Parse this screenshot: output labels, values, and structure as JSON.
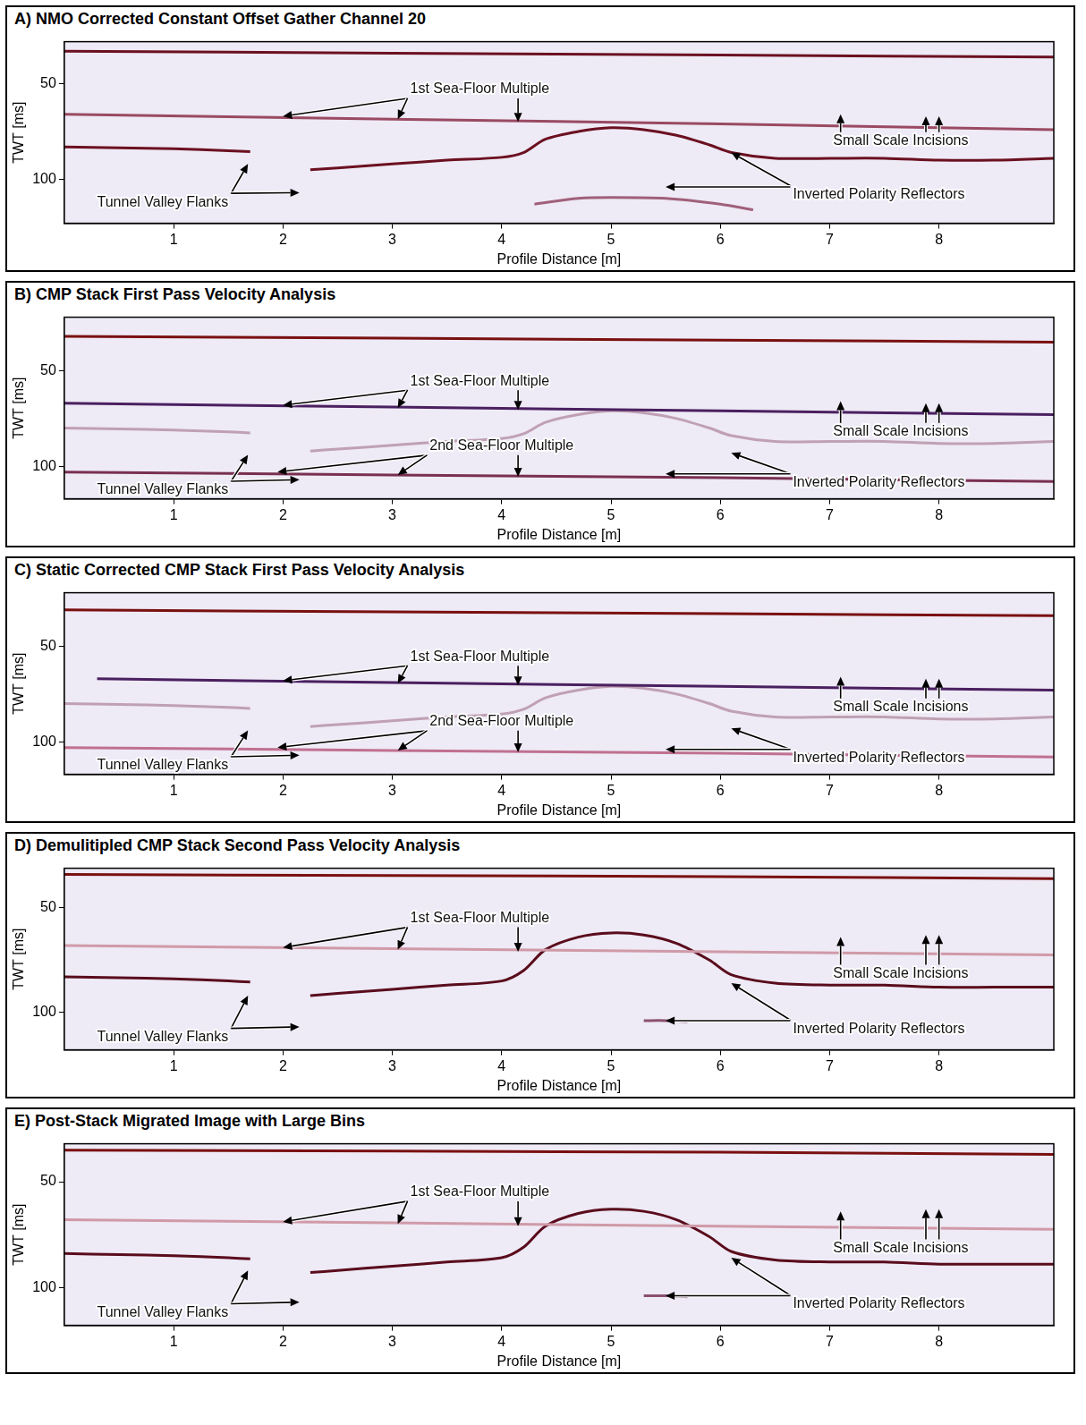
{
  "chart_data": [
    {
      "type": "line",
      "title": "A) NMO Corrected Constant Offset Gather Channel 20",
      "x_label": "Profile Distance [m]",
      "y_label": "TWT [ms]",
      "xlim": [
        0,
        9.05
      ],
      "ylim": [
        123,
        28
      ],
      "xticks": [
        1,
        2,
        3,
        4,
        5,
        6,
        7,
        8
      ],
      "yticks": [
        50,
        100
      ],
      "grid": false,
      "series": [
        {
          "color": "#6b1020",
          "x": [
            0,
            3,
            6,
            9.05
          ],
          "values": [
            33,
            34,
            35,
            36
          ]
        },
        {
          "color": "#9a4a62",
          "x": [
            0,
            3,
            6,
            9.05
          ],
          "values": [
            66,
            68.5,
            71,
            74
          ]
        },
        {
          "color": "#6b1020",
          "x": [
            0,
            0.5,
            1,
            1.5,
            1.7,
            1.75,
            2.25,
            2.5,
            3,
            3.5,
            4,
            4.2,
            4.4,
            4.7,
            5,
            5.3,
            5.6,
            5.9,
            6.1,
            6.5,
            7,
            7.5,
            8,
            8.5,
            9.05
          ],
          "values": [
            83,
            83.5,
            84,
            85,
            85.5,
            null,
            95,
            94,
            92,
            90,
            88.5,
            86,
            79,
            75,
            73,
            74,
            77,
            82,
            86,
            89,
            89,
            89,
            90,
            90,
            89
          ]
        },
        {
          "color": "#a0607a",
          "x": [
            4.3,
            4.7,
            5,
            5.5,
            6,
            6.3
          ],
          "values": [
            113,
            110,
            109.5,
            110,
            113,
            116
          ]
        }
      ],
      "annotations": [
        {
          "text": "1st Sea-Floor Multiple",
          "x": 3.8,
          "y": 53,
          "arrows": [
            [
              2.0,
              67
            ],
            [
              3.05,
              68.5
            ],
            [
              4.15,
              70
            ]
          ]
        },
        {
          "text": "Small Scale Incisions",
          "x": 7.65,
          "y": 80,
          "arrows": [
            [
              7.1,
              66
            ],
            [
              7.88,
              67
            ],
            [
              8.0,
              67
            ]
          ]
        },
        {
          "text": "Tunnel Valley Flanks",
          "x": 0.9,
          "y": 112,
          "arrows": [
            [
              1.68,
              92
            ],
            [
              2.15,
              107
            ]
          ]
        },
        {
          "text": "Inverted Polarity Reflectors",
          "x": 7.45,
          "y": 108,
          "arrows": [
            [
              6.1,
              86
            ],
            [
              5.5,
              104
            ]
          ]
        }
      ]
    },
    {
      "type": "line",
      "title": "B) CMP Stack First Pass Velocity Analysis",
      "x_label": "Profile Distance [m]",
      "y_label": "TWT [ms]",
      "xlim": [
        0,
        9.05
      ],
      "ylim": [
        117,
        22
      ],
      "xticks": [
        1,
        2,
        3,
        4,
        5,
        6,
        7,
        8
      ],
      "yticks": [
        50,
        100
      ],
      "grid": false,
      "series": [
        {
          "color": "#7a1010",
          "x": [
            0,
            3,
            6,
            9.05
          ],
          "values": [
            32,
            33,
            34,
            35
          ]
        },
        {
          "color": "#4a2060",
          "x": [
            0,
            3,
            6,
            9.05
          ],
          "values": [
            67,
            69,
            71,
            73
          ]
        },
        {
          "color": "#7a3050",
          "x": [
            0,
            3,
            6,
            9.05
          ],
          "values": [
            103,
            104.5,
            106,
            108
          ]
        },
        {
          "color": "#c0a0b4",
          "x": [
            0,
            0.5,
            1,
            1.5,
            1.7,
            1.75,
            2.25,
            2.5,
            3,
            3.5,
            4,
            4.2,
            4.4,
            4.7,
            5,
            5.3,
            5.6,
            5.9,
            6.1,
            6.5,
            7,
            7.5,
            8,
            8.5,
            9.05
          ],
          "values": [
            80,
            80.5,
            81,
            82,
            82.5,
            null,
            92,
            91,
            89,
            87,
            85.5,
            83,
            77,
            73,
            71,
            72,
            75,
            80,
            84,
            87,
            87,
            87,
            88,
            88,
            87
          ]
        }
      ],
      "annotations": [
        {
          "text": "1st Sea-Floor Multiple",
          "x": 3.8,
          "y": 55.5,
          "arrows": [
            [
              2.0,
              68
            ],
            [
              3.05,
              69.5
            ],
            [
              4.15,
              70.5
            ]
          ]
        },
        {
          "text": "2nd Sea-Floor Multiple",
          "x": 4.0,
          "y": 89.5,
          "arrows": [
            [
              1.95,
              103
            ],
            [
              3.05,
              104.5
            ],
            [
              4.15,
              105.5
            ]
          ]
        },
        {
          "text": "Small Scale Incisions",
          "x": 7.65,
          "y": 82,
          "arrows": [
            [
              7.1,
              66
            ],
            [
              7.88,
              67
            ],
            [
              8.0,
              67
            ]
          ]
        },
        {
          "text": "Tunnel Valley Flanks",
          "x": 0.9,
          "y": 112.5,
          "arrows": [
            [
              1.68,
              94
            ],
            [
              2.15,
              107
            ]
          ]
        },
        {
          "text": "Inverted Polarity Reflectors",
          "x": 7.45,
          "y": 108.5,
          "arrows": [
            [
              6.1,
              93
            ],
            [
              5.5,
              104
            ]
          ]
        }
      ]
    },
    {
      "type": "line",
      "title": "C) Static Corrected CMP Stack First Pass Velocity Analysis",
      "x_label": "Profile Distance [m]",
      "y_label": "TWT [ms]",
      "xlim": [
        0,
        9.05
      ],
      "ylim": [
        117,
        22
      ],
      "xticks": [
        1,
        2,
        3,
        4,
        5,
        6,
        7,
        8
      ],
      "yticks": [
        50,
        100
      ],
      "grid": false,
      "series": [
        {
          "color": "#7a1010",
          "x": [
            0,
            3,
            6,
            9.05
          ],
          "values": [
            31,
            32,
            33,
            34
          ]
        },
        {
          "color": "#4a2060",
          "x": [
            0.3,
            3,
            6,
            9.05
          ],
          "values": [
            67,
            69,
            71,
            73
          ]
        },
        {
          "color": "#c07090",
          "x": [
            0,
            3,
            6,
            9.05
          ],
          "values": [
            103,
            104.5,
            106,
            108
          ]
        },
        {
          "color": "#c0a0b4",
          "x": [
            0,
            0.5,
            1,
            1.5,
            1.7,
            1.75,
            2.25,
            2.5,
            3,
            3.5,
            4,
            4.2,
            4.4,
            4.7,
            5,
            5.3,
            5.6,
            5.9,
            6.1,
            6.5,
            7,
            7.5,
            8,
            8.5,
            9.05
          ],
          "values": [
            80,
            80.5,
            81,
            82,
            82.5,
            null,
            92,
            91,
            89,
            87,
            85.5,
            83,
            77,
            73,
            71,
            72,
            75,
            80,
            84,
            87,
            87,
            87,
            88,
            88,
            87
          ]
        }
      ],
      "annotations": [
        {
          "text": "1st Sea-Floor Multiple",
          "x": 3.8,
          "y": 55.5,
          "arrows": [
            [
              2.0,
              68
            ],
            [
              3.05,
              69.5
            ],
            [
              4.15,
              70.5
            ]
          ]
        },
        {
          "text": "2nd Sea-Floor Multiple",
          "x": 4.0,
          "y": 89.5,
          "arrows": [
            [
              1.95,
              103
            ],
            [
              3.05,
              104.5
            ],
            [
              4.15,
              105.5
            ]
          ]
        },
        {
          "text": "Small Scale Incisions",
          "x": 7.65,
          "y": 82,
          "arrows": [
            [
              7.1,
              66
            ],
            [
              7.88,
              67
            ],
            [
              8.0,
              67
            ]
          ]
        },
        {
          "text": "Tunnel Valley Flanks",
          "x": 0.9,
          "y": 112.5,
          "arrows": [
            [
              1.68,
              94
            ],
            [
              2.15,
              107
            ]
          ]
        },
        {
          "text": "Inverted Polarity Reflectors",
          "x": 7.45,
          "y": 108.5,
          "arrows": [
            [
              6.1,
              93
            ],
            [
              5.5,
              104
            ]
          ]
        }
      ]
    },
    {
      "type": "line",
      "title": "D) Demulitipled CMP Stack Second Pass Velocity Analysis",
      "x_label": "Profile Distance [m]",
      "y_label": "TWT [ms]",
      "xlim": [
        0,
        9.05
      ],
      "ylim": [
        118,
        31
      ],
      "xticks": [
        1,
        2,
        3,
        4,
        5,
        6,
        7,
        8
      ],
      "yticks": [
        50,
        100
      ],
      "grid": false,
      "series": [
        {
          "color": "#7a1010",
          "x": [
            0,
            3,
            6,
            9.05
          ],
          "values": [
            34,
            34.5,
            35,
            36
          ]
        },
        {
          "color": "#d09aa8",
          "x": [
            0,
            3,
            6,
            9.05
          ],
          "values": [
            68,
            69.5,
            71,
            72.5
          ]
        },
        {
          "color": "#5a0c1c",
          "x": [
            0,
            0.5,
            1,
            1.5,
            1.7,
            1.75,
            2.25,
            2.5,
            3,
            3.5,
            4,
            4.2,
            4.4,
            4.7,
            5,
            5.3,
            5.6,
            5.9,
            6.1,
            6.5,
            7,
            7.5,
            8,
            8.5,
            9.05
          ],
          "values": [
            83,
            83.5,
            84,
            85,
            85.5,
            null,
            92,
            91,
            89,
            87,
            85,
            80,
            70,
            64,
            62,
            63,
            67,
            75,
            82,
            86,
            87,
            87,
            88,
            88,
            88
          ]
        },
        {
          "color": "#8a5070",
          "x": [
            5.3,
            5.5,
            5.7
          ],
          "values": [
            104,
            104,
            104.5
          ]
        }
      ],
      "annotations": [
        {
          "text": "1st Sea-Floor Multiple",
          "x": 3.8,
          "y": 55,
          "arrows": [
            [
              2.0,
              69
            ],
            [
              3.05,
              70
            ],
            [
              4.15,
              71
            ]
          ]
        },
        {
          "text": "Small Scale Incisions",
          "x": 7.65,
          "y": 81.5,
          "arrows": [
            [
              7.1,
              64
            ],
            [
              7.88,
              63
            ],
            [
              8.0,
              63
            ]
          ]
        },
        {
          "text": "Tunnel Valley Flanks",
          "x": 0.9,
          "y": 112,
          "arrows": [
            [
              1.68,
              92
            ],
            [
              2.15,
              107
            ]
          ]
        },
        {
          "text": "Inverted Polarity Reflectors",
          "x": 7.45,
          "y": 108,
          "arrows": [
            [
              6.1,
              86
            ],
            [
              5.5,
              104
            ]
          ]
        }
      ]
    },
    {
      "type": "line",
      "title": "E) Post-Stack Migrated Image with Large Bins",
      "x_label": "Profile Distance [m]",
      "y_label": "TWT [ms]",
      "xlim": [
        0,
        9.05
      ],
      "ylim": [
        118,
        32
      ],
      "xticks": [
        1,
        2,
        3,
        4,
        5,
        6,
        7,
        8
      ],
      "yticks": [
        50,
        100
      ],
      "grid": false,
      "series": [
        {
          "color": "#7a1010",
          "x": [
            0,
            3,
            6,
            9.05
          ],
          "values": [
            35,
            35.5,
            36,
            37
          ]
        },
        {
          "color": "#d09aa8",
          "x": [
            0,
            3,
            6,
            9.05
          ],
          "values": [
            68,
            69.5,
            71,
            72.5
          ]
        },
        {
          "color": "#5a0c1c",
          "x": [
            0,
            0.5,
            1,
            1.5,
            1.7,
            1.75,
            2.25,
            2.5,
            3,
            3.5,
            4,
            4.2,
            4.4,
            4.7,
            5,
            5.3,
            5.6,
            5.9,
            6.1,
            6.5,
            7,
            7.5,
            8,
            8.5,
            9.05
          ],
          "values": [
            84,
            84.5,
            85,
            86,
            86.5,
            null,
            93,
            92,
            90,
            88,
            86,
            81,
            71,
            65,
            63,
            64,
            68,
            76,
            83,
            87,
            88,
            88,
            89,
            89,
            89
          ]
        },
        {
          "color": "#8a5070",
          "x": [
            5.3,
            5.5,
            5.7
          ],
          "values": [
            104,
            104,
            104.5
          ]
        }
      ],
      "annotations": [
        {
          "text": "1st Sea-Floor Multiple",
          "x": 3.8,
          "y": 55,
          "arrows": [
            [
              2.0,
              69
            ],
            [
              3.05,
              70
            ],
            [
              4.15,
              71
            ]
          ]
        },
        {
          "text": "Small Scale Incisions",
          "x": 7.65,
          "y": 81.5,
          "arrows": [
            [
              7.1,
              64
            ],
            [
              7.88,
              63
            ],
            [
              8.0,
              63
            ]
          ]
        },
        {
          "text": "Tunnel Valley Flanks",
          "x": 0.9,
          "y": 112,
          "arrows": [
            [
              1.68,
              92
            ],
            [
              2.15,
              107
            ]
          ]
        },
        {
          "text": "Inverted Polarity Reflectors",
          "x": 7.45,
          "y": 108,
          "arrows": [
            [
              6.1,
              86
            ],
            [
              5.5,
              104
            ]
          ]
        }
      ]
    }
  ]
}
